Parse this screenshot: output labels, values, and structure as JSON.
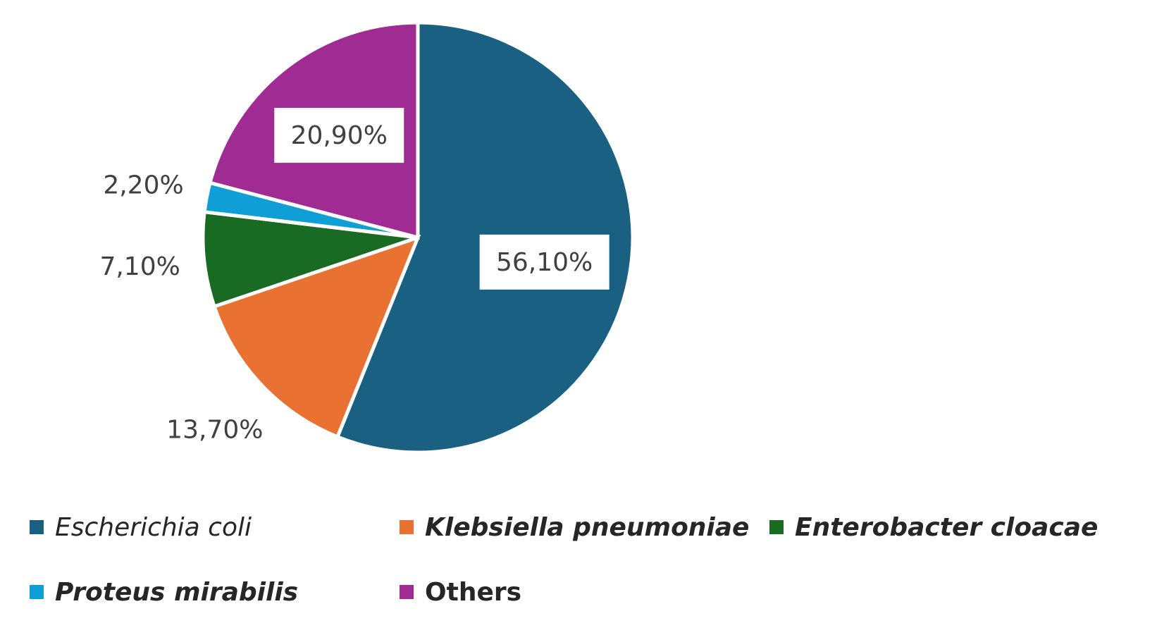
{
  "chart_data": {
    "type": "pie",
    "categories": [
      "Escherichia coli",
      "Klebsiella pneumoniae",
      "Enterobacter cloacae",
      "Proteus mirabilis",
      "Others"
    ],
    "values": [
      56.1,
      13.7,
      7.1,
      2.2,
      20.9
    ],
    "value_labels": [
      "56,10%",
      "13,70%",
      "7,10%",
      "2,20%",
      "20,90%"
    ],
    "colors": [
      "#1a6082",
      "#e97132",
      "#196b24",
      "#0f9ed5",
      "#a02b93"
    ],
    "legend": "bottom"
  }
}
